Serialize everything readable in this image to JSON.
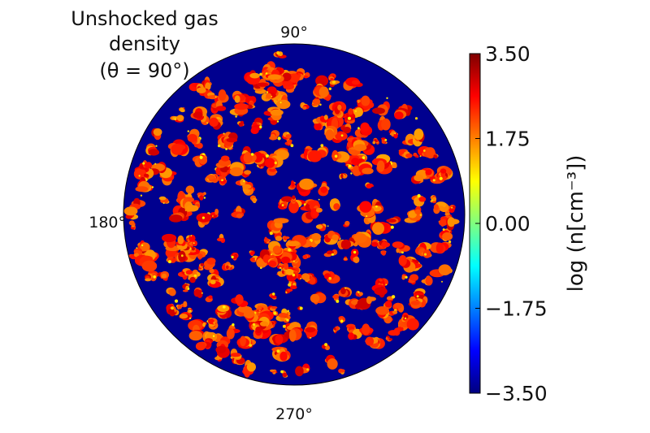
{
  "chart_data": {
    "type": "heatmap",
    "projection": "polar-disk",
    "title_lines": [
      "Unshocked gas",
      "density",
      "(θ = 90°)"
    ],
    "angle_labels": {
      "top": "90°",
      "left": "180°",
      "bottom": "270°"
    },
    "colorbar": {
      "label": "log (n[cm⁻³])",
      "range": [
        -3.5,
        3.5
      ],
      "ticks": [
        "3.50",
        "1.75",
        "0.00",
        "−1.75",
        "−3.50"
      ],
      "colormap": "jet"
    },
    "background_value": -3.5,
    "clump_value_range": [
      1.5,
      3.0
    ],
    "background_color": "#00008f"
  }
}
